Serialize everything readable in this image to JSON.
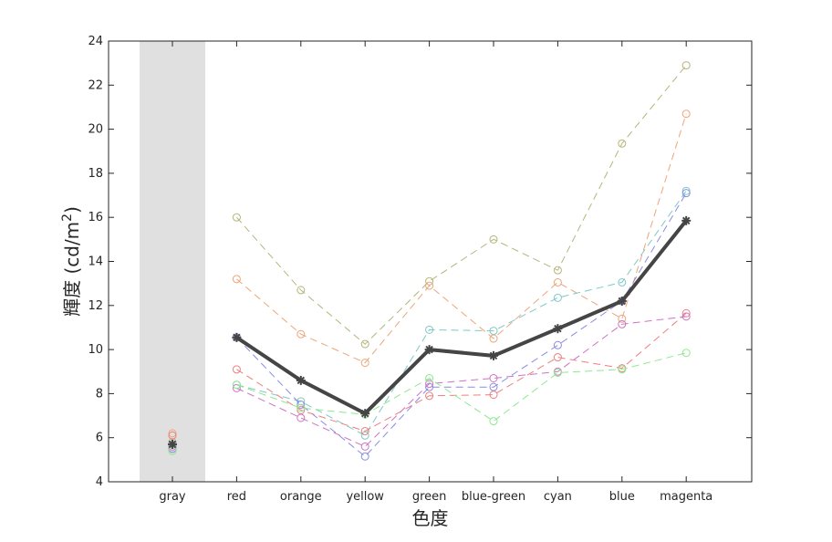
{
  "chart_data": {
    "type": "line",
    "xlabel": "色度",
    "ylabel_main": "輝度 (cd/m",
    "ylabel_sup": "2",
    "ylabel_close": ")",
    "ylim": [
      4,
      24
    ],
    "yticks": [
      4,
      6,
      8,
      10,
      12,
      14,
      16,
      18,
      20,
      22,
      24
    ],
    "categories": [
      "gray",
      "red",
      "orange",
      "yellow",
      "green",
      "blue-green",
      "cyan",
      "blue",
      "magenta"
    ],
    "highlight_category": "gray",
    "highlight_color": "#e0e0e0",
    "grid": false,
    "series": [
      {
        "color": "#b5b57a",
        "dashed": true,
        "marker": "circle",
        "values": [
          5.8,
          16.0,
          12.7,
          10.25,
          13.1,
          15.0,
          13.6,
          19.35,
          22.9
        ]
      },
      {
        "color": "#eda57a",
        "dashed": true,
        "marker": "circle",
        "values": [
          6.2,
          13.2,
          10.7,
          9.4,
          12.9,
          10.5,
          13.05,
          11.4,
          20.7
        ]
      },
      {
        "color": "#7fc8c8",
        "dashed": true,
        "marker": "circle",
        "values": [
          5.7,
          8.4,
          7.65,
          6.1,
          10.9,
          10.85,
          12.35,
          13.05,
          17.2
        ]
      },
      {
        "color": "#8a8ae5",
        "dashed": true,
        "marker": "circle",
        "values": [
          5.5,
          10.55,
          7.5,
          5.15,
          8.3,
          8.3,
          10.2,
          12.2,
          17.1
        ]
      },
      {
        "color": "#ee7f7f",
        "dashed": true,
        "marker": "circle",
        "values": [
          6.1,
          9.1,
          7.25,
          6.3,
          7.9,
          7.95,
          9.65,
          9.15,
          11.65
        ]
      },
      {
        "color": "#cc74c2",
        "dashed": true,
        "marker": "circle",
        "values": [
          5.6,
          8.25,
          6.9,
          5.6,
          8.45,
          8.7,
          9.0,
          11.15,
          11.5
        ]
      },
      {
        "color": "#8ee88e",
        "dashed": true,
        "marker": "circle",
        "values": [
          5.4,
          8.4,
          7.35,
          7.05,
          8.7,
          6.75,
          8.95,
          9.1,
          9.85
        ]
      },
      {
        "color": "#454545",
        "dashed": false,
        "marker": "asterisk",
        "bold": true,
        "values": [
          5.7,
          10.55,
          8.6,
          7.1,
          10.0,
          9.72,
          10.95,
          12.2,
          15.85
        ]
      }
    ]
  }
}
